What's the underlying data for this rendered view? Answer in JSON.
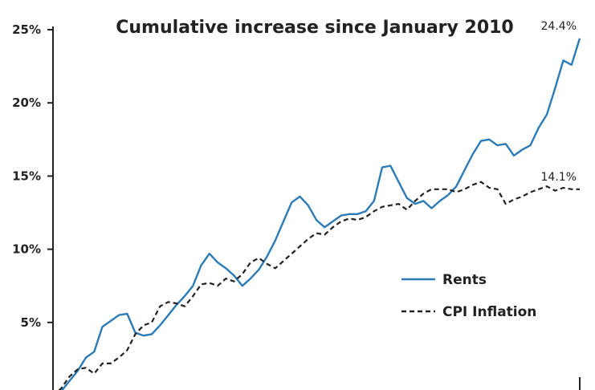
{
  "chart_data": {
    "type": "line",
    "title": "Cumulative increase since January 2010",
    "xlabel": "",
    "ylabel": "",
    "ylim": [
      0,
      25
    ],
    "yticks": [
      5,
      10,
      15,
      20,
      25
    ],
    "ytick_labels": [
      "5%",
      "10%",
      "15%",
      "20%",
      "25%"
    ],
    "grid": false,
    "legend": {
      "placement": "lower-right",
      "entries": [
        "Rents",
        "CPI Inflation"
      ]
    },
    "series": [
      {
        "name": "Rents",
        "color": "#2c7bb6",
        "style": "solid",
        "end_label": "24.4%",
        "values": [
          0.0,
          0.3,
          1.0,
          1.7,
          2.6,
          3.0,
          4.7,
          5.1,
          5.5,
          5.6,
          4.3,
          4.1,
          4.2,
          4.8,
          5.5,
          6.2,
          6.8,
          7.5,
          8.9,
          9.7,
          9.1,
          8.7,
          8.2,
          7.5,
          8.0,
          8.6,
          9.5,
          10.6,
          11.9,
          13.2,
          13.6,
          13.0,
          12.0,
          11.5,
          11.9,
          12.3,
          12.4,
          12.4,
          12.6,
          13.3,
          15.6,
          15.7,
          14.6,
          13.5,
          13.1,
          13.3,
          12.8,
          13.3,
          13.7,
          14.3,
          15.4,
          16.5,
          17.4,
          17.5,
          17.1,
          17.2,
          16.4,
          16.8,
          17.1,
          18.3,
          19.2,
          21.0,
          22.9,
          22.6,
          24.4
        ]
      },
      {
        "name": "CPI Inflation",
        "color": "#222222",
        "style": "dashed",
        "end_label": "14.1%",
        "values": [
          0.0,
          0.5,
          1.3,
          1.8,
          1.9,
          1.5,
          2.2,
          2.2,
          2.6,
          3.1,
          4.2,
          4.8,
          5.0,
          6.1,
          6.4,
          6.3,
          6.1,
          6.8,
          7.6,
          7.7,
          7.5,
          8.0,
          7.8,
          8.3,
          9.1,
          9.4,
          9.0,
          8.7,
          9.2,
          9.7,
          10.2,
          10.7,
          11.1,
          11.0,
          11.5,
          11.9,
          12.1,
          12.0,
          12.2,
          12.6,
          12.9,
          13.0,
          13.1,
          12.7,
          13.3,
          13.8,
          14.1,
          14.1,
          14.1,
          13.9,
          14.1,
          14.4,
          14.6,
          14.2,
          14.1,
          13.1,
          13.4,
          13.6,
          13.9,
          14.1,
          14.3,
          14.0,
          14.2,
          14.1,
          14.1
        ]
      }
    ]
  }
}
